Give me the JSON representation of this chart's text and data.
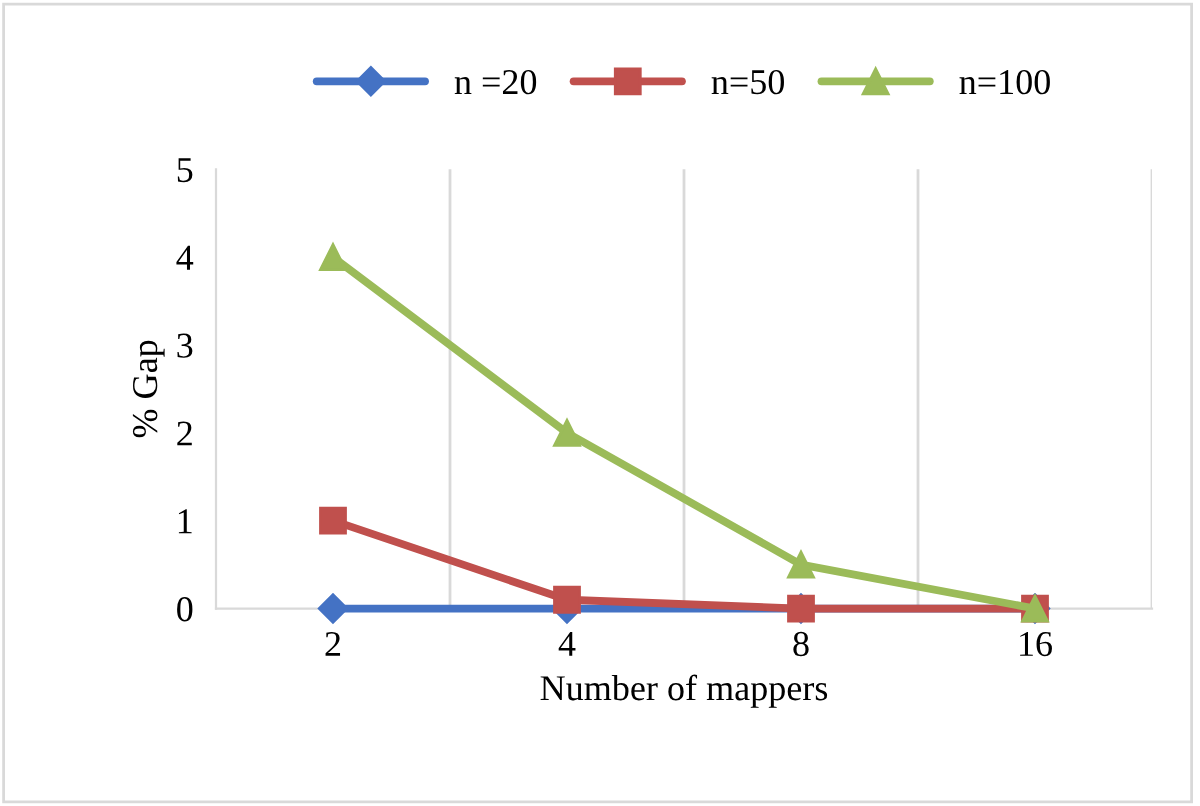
{
  "chart_data": {
    "type": "line",
    "xlabel": "Number of mappers",
    "ylabel": "% Gap",
    "categories": [
      "2",
      "4",
      "8",
      "16"
    ],
    "series": [
      {
        "name": "n =20",
        "color": "#4472c4",
        "marker": "diamond",
        "values": [
          0,
          0,
          0,
          0
        ]
      },
      {
        "name": "n=50",
        "color": "#c0504d",
        "marker": "square",
        "values": [
          1,
          0.1,
          0,
          0
        ]
      },
      {
        "name": "n=100",
        "color": "#9bbb59",
        "marker": "triangle",
        "values": [
          4,
          2,
          0.5,
          0
        ]
      }
    ],
    "ylim": [
      0,
      5
    ],
    "yticks": [
      0,
      1,
      2,
      3,
      4,
      5
    ],
    "grid": "x",
    "legend": "top",
    "line_style": "solid"
  }
}
